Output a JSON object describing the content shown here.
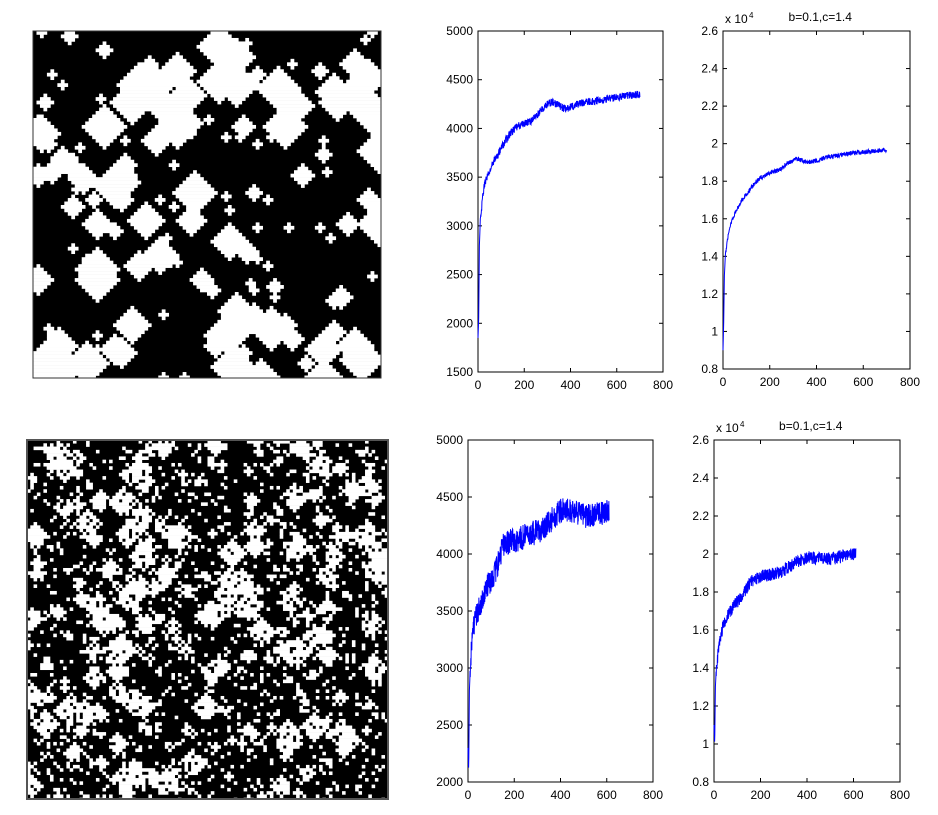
{
  "chart_data": [
    {
      "type": "heatmap",
      "description_visible": "binary lattice pattern (black/white)",
      "colors": {
        "on": "#ffffff",
        "off": "#000000"
      }
    },
    {
      "type": "line",
      "title": "",
      "xlim": [
        0,
        800
      ],
      "ylim": [
        1500,
        5000
      ],
      "xticks": [
        0,
        200,
        400,
        600,
        800
      ],
      "yticks": [
        1500,
        2000,
        2500,
        3000,
        3500,
        4000,
        4500,
        5000
      ],
      "x_max_data": 700,
      "series": [
        {
          "color": "#0000ff",
          "points": [
            [
              0,
              1850
            ],
            [
              3,
              2050
            ],
            [
              6,
              2800
            ],
            [
              10,
              3050
            ],
            [
              15,
              3150
            ],
            [
              20,
              3300
            ],
            [
              30,
              3450
            ],
            [
              40,
              3500
            ],
            [
              50,
              3550
            ],
            [
              60,
              3620
            ],
            [
              70,
              3680
            ],
            [
              80,
              3700
            ],
            [
              90,
              3750
            ],
            [
              100,
              3800
            ],
            [
              120,
              3880
            ],
            [
              140,
              3950
            ],
            [
              160,
              4000
            ],
            [
              180,
              4030
            ],
            [
              200,
              4050
            ],
            [
              230,
              4080
            ],
            [
              260,
              4150
            ],
            [
              280,
              4200
            ],
            [
              300,
              4250
            ],
            [
              320,
              4270
            ],
            [
              340,
              4250
            ],
            [
              360,
              4220
            ],
            [
              380,
              4200
            ],
            [
              400,
              4220
            ],
            [
              430,
              4250
            ],
            [
              460,
              4270
            ],
            [
              500,
              4280
            ],
            [
              550,
              4300
            ],
            [
              600,
              4320
            ],
            [
              650,
              4340
            ],
            [
              700,
              4350
            ]
          ],
          "noise": 40
        }
      ]
    },
    {
      "type": "line",
      "title": "b=0.1,c=1.4",
      "y_multiplier": "x 10",
      "y_multiplier_exp": "4",
      "xlim": [
        0,
        800
      ],
      "ylim": [
        0.8,
        2.6
      ],
      "xticks": [
        0,
        200,
        400,
        600,
        800
      ],
      "yticks": [
        0.8,
        1,
        1.2,
        1.4,
        1.6,
        1.8,
        2,
        2.2,
        2.4,
        2.6
      ],
      "ytick_labels": [
        "0.8",
        "1",
        "1.2",
        "1.4",
        "1.6",
        "1.8",
        "2",
        "2.2",
        "2.4",
        "2.6"
      ],
      "x_max_data": 700,
      "series": [
        {
          "color": "#0000ff",
          "points": [
            [
              0,
              0.9
            ],
            [
              3,
              1.05
            ],
            [
              6,
              1.3
            ],
            [
              10,
              1.4
            ],
            [
              20,
              1.5
            ],
            [
              30,
              1.56
            ],
            [
              40,
              1.6
            ],
            [
              60,
              1.65
            ],
            [
              80,
              1.7
            ],
            [
              100,
              1.73
            ],
            [
              130,
              1.78
            ],
            [
              160,
              1.82
            ],
            [
              200,
              1.84
            ],
            [
              240,
              1.86
            ],
            [
              280,
              1.9
            ],
            [
              320,
              1.92
            ],
            [
              360,
              1.9
            ],
            [
              400,
              1.91
            ],
            [
              450,
              1.93
            ],
            [
              500,
              1.94
            ],
            [
              550,
              1.95
            ],
            [
              600,
              1.955
            ],
            [
              650,
              1.96
            ],
            [
              700,
              1.965
            ]
          ],
          "noise": 0.012
        }
      ]
    },
    {
      "type": "heatmap",
      "description_visible": "binary lattice pattern (black/white), noisier",
      "colors": {
        "on": "#ffffff",
        "off": "#000000"
      }
    },
    {
      "type": "line",
      "title": "",
      "xlim": [
        0,
        800
      ],
      "ylim": [
        2000,
        5000
      ],
      "xticks": [
        0,
        200,
        400,
        600,
        800
      ],
      "yticks": [
        2000,
        2500,
        3000,
        3500,
        4000,
        4500,
        5000
      ],
      "x_max_data": 610,
      "series": [
        {
          "color": "#0000ff",
          "points": [
            [
              0,
              2300
            ],
            [
              3,
              2100
            ],
            [
              6,
              2800
            ],
            [
              10,
              3000
            ],
            [
              15,
              3200
            ],
            [
              20,
              3300
            ],
            [
              30,
              3400
            ],
            [
              40,
              3480
            ],
            [
              50,
              3550
            ],
            [
              60,
              3600
            ],
            [
              80,
              3700
            ],
            [
              100,
              3780
            ],
            [
              120,
              3850
            ],
            [
              140,
              4000
            ],
            [
              150,
              4080
            ],
            [
              170,
              4100
            ],
            [
              200,
              4120
            ],
            [
              240,
              4150
            ],
            [
              280,
              4180
            ],
            [
              320,
              4220
            ],
            [
              360,
              4300
            ],
            [
              400,
              4380
            ],
            [
              440,
              4380
            ],
            [
              480,
              4350
            ],
            [
              520,
              4330
            ],
            [
              560,
              4350
            ],
            [
              610,
              4380
            ]
          ],
          "noise": 110
        }
      ]
    },
    {
      "type": "line",
      "title": "b=0.1,c=1.4",
      "y_multiplier": "x 10",
      "y_multiplier_exp": "4",
      "xlim": [
        0,
        800
      ],
      "ylim": [
        0.8,
        2.6
      ],
      "xticks": [
        0,
        200,
        400,
        600,
        800
      ],
      "yticks": [
        0.8,
        1,
        1.2,
        1.4,
        1.6,
        1.8,
        2,
        2.2,
        2.4,
        2.6
      ],
      "ytick_labels": [
        "0.8",
        "1",
        "1.2",
        "1.4",
        "1.6",
        "1.8",
        "2",
        "2.2",
        "2.4",
        "2.6"
      ],
      "x_max_data": 610,
      "series": [
        {
          "color": "#0000ff",
          "points": [
            [
              0,
              1.1
            ],
            [
              3,
              1.0
            ],
            [
              6,
              1.3
            ],
            [
              10,
              1.4
            ],
            [
              20,
              1.5
            ],
            [
              30,
              1.58
            ],
            [
              40,
              1.62
            ],
            [
              60,
              1.68
            ],
            [
              80,
              1.72
            ],
            [
              100,
              1.75
            ],
            [
              130,
              1.8
            ],
            [
              160,
              1.86
            ],
            [
              200,
              1.88
            ],
            [
              240,
              1.89
            ],
            [
              280,
              1.9
            ],
            [
              320,
              1.93
            ],
            [
              360,
              1.96
            ],
            [
              400,
              1.98
            ],
            [
              440,
              1.98
            ],
            [
              480,
              1.97
            ],
            [
              520,
              1.98
            ],
            [
              560,
              1.99
            ],
            [
              610,
              2.0
            ]
          ],
          "noise": 0.035
        }
      ]
    }
  ]
}
